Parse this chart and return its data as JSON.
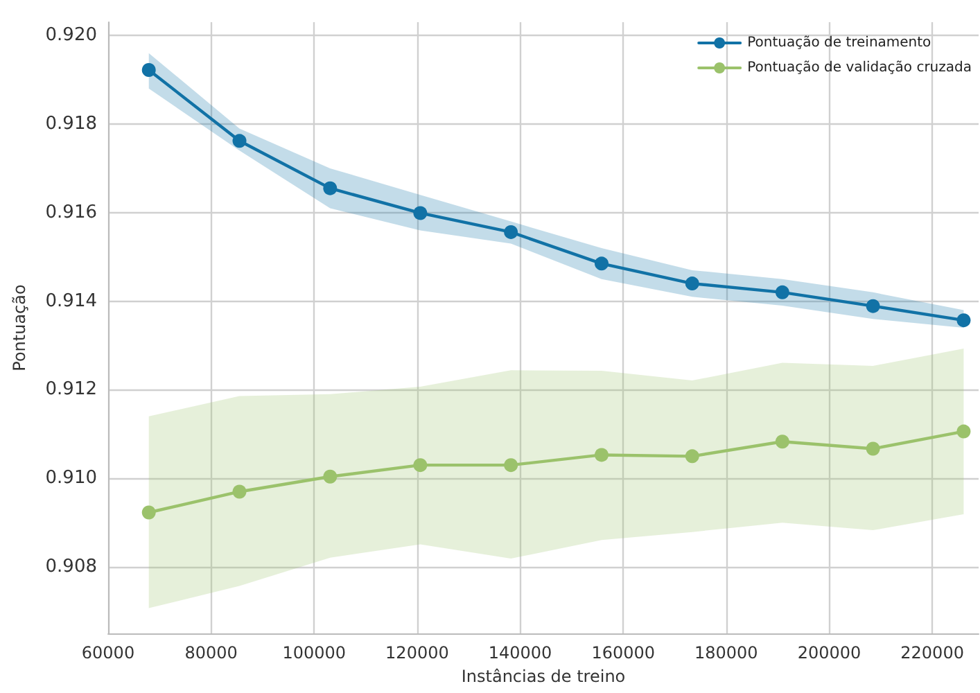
{
  "chart_data": {
    "type": "line",
    "xlabel": "Instâncias de treino",
    "ylabel": "Pontuação",
    "x": [
      67900,
      85500,
      103100,
      120600,
      138200,
      155800,
      173400,
      190900,
      208500,
      226100
    ],
    "series": [
      {
        "name": "Pontuação de treinamento",
        "color": "#1172a6",
        "values": [
          0.91922,
          0.91762,
          0.91655,
          0.91599,
          0.91556,
          0.91485,
          0.9144,
          0.9142,
          0.91389,
          0.91357
        ],
        "lower": [
          0.9188,
          0.9174,
          0.9161,
          0.9156,
          0.9153,
          0.9145,
          0.9141,
          0.9139,
          0.9136,
          0.9134
        ],
        "upper": [
          0.9196,
          0.9179,
          0.917,
          0.9164,
          0.9158,
          0.9152,
          0.9147,
          0.9145,
          0.9142,
          0.9138
        ]
      },
      {
        "name": "Pontuação de validação cruzada",
        "color": "#9bc26b",
        "values": [
          0.90923,
          0.9097,
          0.91004,
          0.9103,
          0.9103,
          0.91053,
          0.9105,
          0.91083,
          0.91067,
          0.91106
        ],
        "lower": [
          0.90707,
          0.90757,
          0.90821,
          0.90851,
          0.90819,
          0.90861,
          0.90879,
          0.909,
          0.90883,
          0.90919
        ],
        "upper": [
          0.9114,
          0.91186,
          0.9119,
          0.91207,
          0.91244,
          0.91243,
          0.91221,
          0.91261,
          0.91254,
          0.91293
        ]
      }
    ],
    "xlim": [
      60000,
      229000
    ],
    "xticks": [
      60000,
      80000,
      100000,
      120000,
      140000,
      160000,
      180000,
      200000,
      220000
    ],
    "ylim": [
      0.9065,
      0.9203
    ],
    "yticks": [
      0.908,
      {
        "value": 0.91,
        "label": "0.910"
      },
      0.912,
      0.914,
      0.916,
      0.918,
      {
        "value": 0.92,
        "label": "0.920"
      }
    ],
    "grid": true,
    "legend": "top right",
    "marker": "circle",
    "line_style": "solid"
  }
}
